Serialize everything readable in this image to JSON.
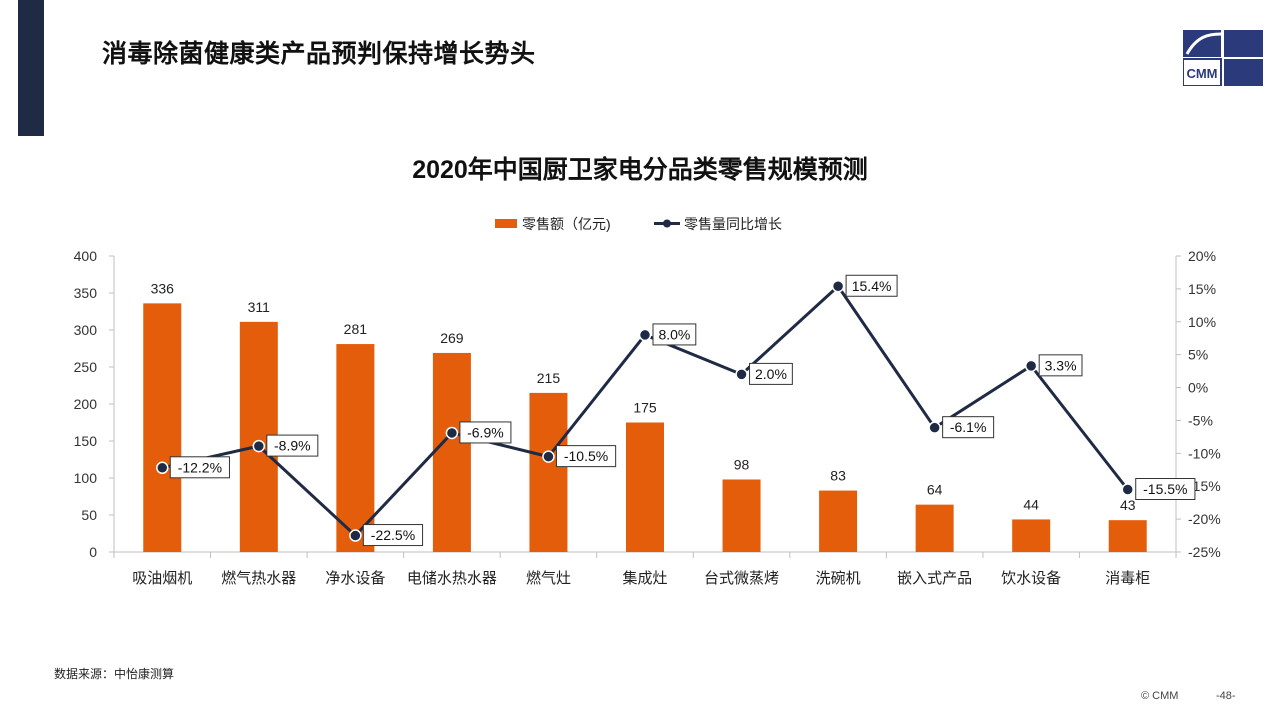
{
  "header": {
    "title": "消毒除菌健康类产品预判保持增长势头",
    "logo_text": "CMM"
  },
  "colors": {
    "bar": "#e35d0a",
    "line": "#1f2a44",
    "accent": "#1f2a44",
    "logo": "#2b3a7a"
  },
  "chart_data": {
    "type": "bar+line",
    "title": "2020年中国厨卫家电分品类零售规模预测",
    "categories": [
      "吸油烟机",
      "燃气热水器",
      "净水设备",
      "电储水热水器",
      "燃气灶",
      "集成灶",
      "台式微蒸烤",
      "洗碗机",
      "嵌入式产品",
      "饮水设备",
      "消毒柜"
    ],
    "series": [
      {
        "name": "零售额（亿元)",
        "type": "bar",
        "axis": "left",
        "values": [
          336,
          311,
          281,
          269,
          215,
          175,
          98,
          83,
          64,
          44,
          43
        ],
        "labels": [
          "336",
          "311",
          "281",
          "269",
          "215",
          "175",
          "98",
          "83",
          "64",
          "44",
          "43"
        ]
      },
      {
        "name": "零售量同比增长",
        "type": "line",
        "axis": "right",
        "values": [
          -12.2,
          -8.9,
          -22.5,
          -6.9,
          -10.5,
          8.0,
          2.0,
          15.4,
          -6.1,
          3.3,
          -15.5
        ],
        "labels": [
          "-12.2%",
          "-8.9%",
          "-22.5%",
          "-6.9%",
          "-10.5%",
          "8.0%",
          "2.0%",
          "15.4%",
          "-6.1%",
          "3.3%",
          "-15.5%"
        ]
      }
    ],
    "y_left": {
      "min": 0,
      "max": 400,
      "ticks": [
        "0",
        "50",
        "100",
        "150",
        "200",
        "250",
        "300",
        "350",
        "400"
      ]
    },
    "y_right": {
      "min": -25,
      "max": 20,
      "ticks": [
        "-25%",
        "-20%",
        "-15%",
        "-10%",
        "-5%",
        "0%",
        "5%",
        "10%",
        "15%",
        "20%"
      ]
    },
    "legend_position": "top-center",
    "grid": false
  },
  "source": "数据来源：中怡康测算",
  "footer": {
    "copyright": "© CMM",
    "page": "-48-"
  }
}
